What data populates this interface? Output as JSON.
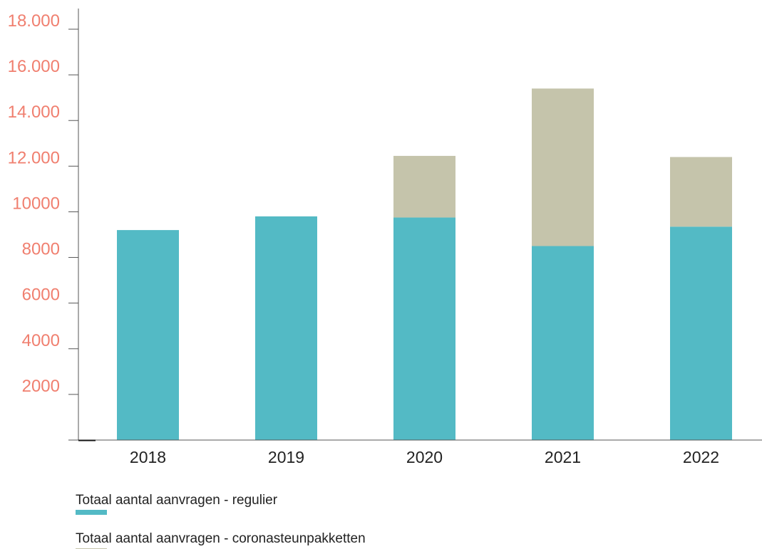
{
  "chart_data": {
    "type": "bar",
    "stacked": true,
    "categories": [
      "2018",
      "2019",
      "2020",
      "2021",
      "2022"
    ],
    "series": [
      {
        "name": "Totaal aantal aanvragen - regulier",
        "color": "#53bac5",
        "values": [
          9200,
          9800,
          9750,
          8500,
          9350
        ]
      },
      {
        "name": "Totaal aantal aanvragen - coronasteunpakketten",
        "color": "#c5c4ab",
        "values": [
          0,
          0,
          2700,
          6900,
          3050
        ]
      }
    ],
    "y_ticks": [
      {
        "value": 2000,
        "label": "2000"
      },
      {
        "value": 4000,
        "label": "4000"
      },
      {
        "value": 6000,
        "label": "6000"
      },
      {
        "value": 8000,
        "label": "8000"
      },
      {
        "value": 10000,
        "label": "10000"
      },
      {
        "value": 12000,
        "label": "12.000"
      },
      {
        "value": 14000,
        "label": "14.000"
      },
      {
        "value": 16000,
        "label": "16.000"
      },
      {
        "value": 18000,
        "label": "18.000"
      }
    ],
    "ylim": [
      0,
      18000
    ],
    "tick_label_color": "#f07f6f",
    "axis_color": "#555555",
    "grid": false,
    "legend_position": "bottom-left",
    "title": "",
    "xlabel": "",
    "ylabel": ""
  }
}
